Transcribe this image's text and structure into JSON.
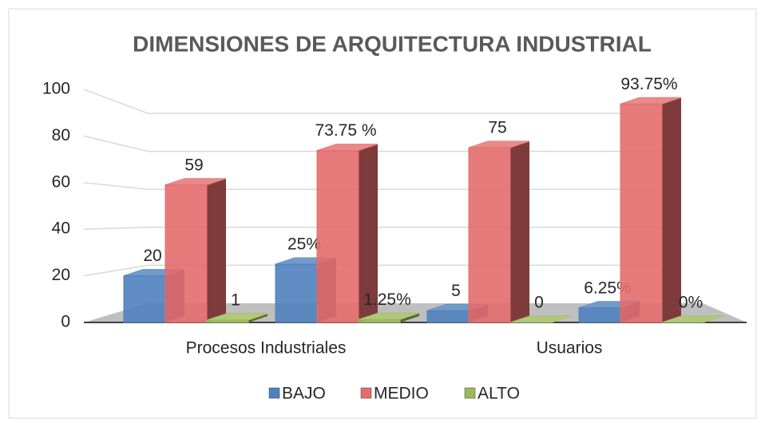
{
  "chart_data": {
    "type": "bar3d",
    "title": "DIMENSIONES DE ARQUITECTURA INDUSTRIAL",
    "categories": [
      "Procesos Industriales",
      null,
      "Usuarios",
      null
    ],
    "series": [
      {
        "name": "BAJO",
        "color": "#4f81bd",
        "values": [
          20,
          25,
          5,
          6.25
        ],
        "value_labels": [
          "20",
          "25%",
          "5",
          "6.25%"
        ]
      },
      {
        "name": "MEDIO",
        "color": "#e46c6c",
        "values": [
          59,
          73.75,
          75,
          93.75
        ],
        "value_labels": [
          "59",
          "73.75 %",
          "75",
          "93.75%"
        ]
      },
      {
        "name": "ALTO",
        "color": "#9bbb59",
        "values": [
          1,
          1.25,
          0,
          0
        ],
        "value_labels": [
          "1",
          "1.25%",
          "0",
          "0%"
        ]
      }
    ],
    "ylim": [
      0,
      100
    ],
    "yticks": [
      0,
      20,
      40,
      60,
      80,
      100
    ],
    "grid": true,
    "legend": "bottom"
  }
}
